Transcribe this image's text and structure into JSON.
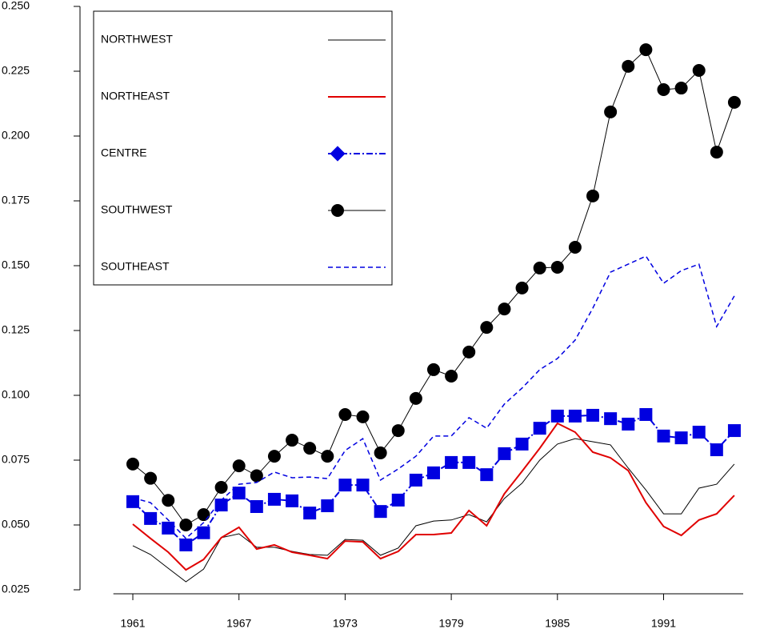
{
  "chart_data": {
    "type": "line",
    "x": [
      1961,
      1962,
      1963,
      1964,
      1965,
      1966,
      1967,
      1968,
      1969,
      1970,
      1971,
      1972,
      1973,
      1974,
      1975,
      1976,
      1977,
      1978,
      1979,
      1980,
      1981,
      1982,
      1983,
      1984,
      1985,
      1986,
      1987,
      1988,
      1989,
      1990,
      1991,
      1992,
      1993,
      1994,
      1995
    ],
    "xlim": [
      1959.9,
      1995.5
    ],
    "xticks": [
      1961,
      1967,
      1973,
      1979,
      1985,
      1991
    ],
    "ylim": [
      0.025,
      0.25
    ],
    "yticks": [
      0.025,
      {
        "value": 0.05,
        "label": "0.050"
      },
      0.075,
      {
        "value": 0.1,
        "label": "0.100"
      },
      0.125,
      {
        "value": 0.15,
        "label": "0.150"
      },
      0.175,
      {
        "value": 0.2,
        "label": "0.200"
      },
      0.225,
      {
        "value": 0.25,
        "label": "0.250"
      }
    ],
    "series": [
      {
        "name": "NORTHWEST",
        "color": "#000000",
        "line_style": "solid",
        "width": 1,
        "marker": "none",
        "values": [
          0.042,
          0.0386,
          0.0333,
          0.0281,
          0.033,
          0.0451,
          0.0466,
          0.0414,
          0.0414,
          0.0398,
          0.0386,
          0.0383,
          0.0444,
          0.0441,
          0.0383,
          0.0411,
          0.0497,
          0.0515,
          0.0519,
          0.054,
          0.0512,
          0.0602,
          0.0661,
          0.075,
          0.0812,
          0.0833,
          0.0821,
          0.0809,
          0.0719,
          0.0635,
          0.0543,
          0.0543,
          0.0642,
          0.0657,
          0.0735
        ]
      },
      {
        "name": "NORTHEAST",
        "color": "#e00000",
        "line_style": "solid",
        "width": 2,
        "marker": "none",
        "values": [
          0.0503,
          0.0448,
          0.0395,
          0.0327,
          0.0367,
          0.0451,
          0.0491,
          0.0407,
          0.0423,
          0.0395,
          0.0383,
          0.037,
          0.0438,
          0.0435,
          0.037,
          0.0398,
          0.0463,
          0.0463,
          0.0469,
          0.0556,
          0.0497,
          0.062,
          0.0707,
          0.0796,
          0.0892,
          0.0858,
          0.0781,
          0.0759,
          0.071,
          0.0586,
          0.0494,
          0.046,
          0.0519,
          0.0543,
          0.0614
        ]
      },
      {
        "name": "CENTRE",
        "color": "#0000e0",
        "line_style": "dashdot",
        "width": 2,
        "marker": "diamond",
        "values": [
          0.059,
          0.0525,
          0.0488,
          0.0423,
          0.047,
          0.0577,
          0.0623,
          0.0571,
          0.0599,
          0.0593,
          0.0546,
          0.0574,
          0.0654,
          0.0654,
          0.0552,
          0.0596,
          0.0673,
          0.0701,
          0.0741,
          0.0741,
          0.0694,
          0.0775,
          0.0812,
          0.0873,
          0.092,
          0.092,
          0.0923,
          0.091,
          0.0889,
          0.0926,
          0.0843,
          0.0836,
          0.0858,
          0.079,
          0.0864
        ]
      },
      {
        "name": "SOUTHWEST",
        "color": "#000000",
        "line_style": "solid",
        "width": 1,
        "marker": "circle",
        "values": [
          0.0735,
          0.068,
          0.0595,
          0.05,
          0.054,
          0.0645,
          0.0728,
          0.069,
          0.0765,
          0.0827,
          0.0796,
          0.0765,
          0.0926,
          0.0917,
          0.0778,
          0.0864,
          0.0988,
          0.1099,
          0.1074,
          0.1167,
          0.1262,
          0.1333,
          0.1414,
          0.1491,
          0.1494,
          0.1571,
          0.1769,
          0.2093,
          0.2269,
          0.2333,
          0.2179,
          0.2185,
          0.2253,
          0.1938,
          0.213
        ]
      },
      {
        "name": "SOUTHEAST",
        "color": "#0000e0",
        "line_style": "dashed",
        "width": 1.5,
        "marker": "none",
        "values": [
          0.0605,
          0.0586,
          0.0519,
          0.0448,
          0.0509,
          0.0596,
          0.0657,
          0.0664,
          0.0704,
          0.0682,
          0.0685,
          0.0679,
          0.0787,
          0.0833,
          0.0673,
          0.0716,
          0.0765,
          0.0843,
          0.0843,
          0.0914,
          0.0873,
          0.0966,
          0.1028,
          0.1099,
          0.1142,
          0.1213,
          0.1336,
          0.1475,
          0.1506,
          0.1537,
          0.1432,
          0.1481,
          0.1506,
          0.1265,
          0.1383
        ]
      }
    ]
  }
}
